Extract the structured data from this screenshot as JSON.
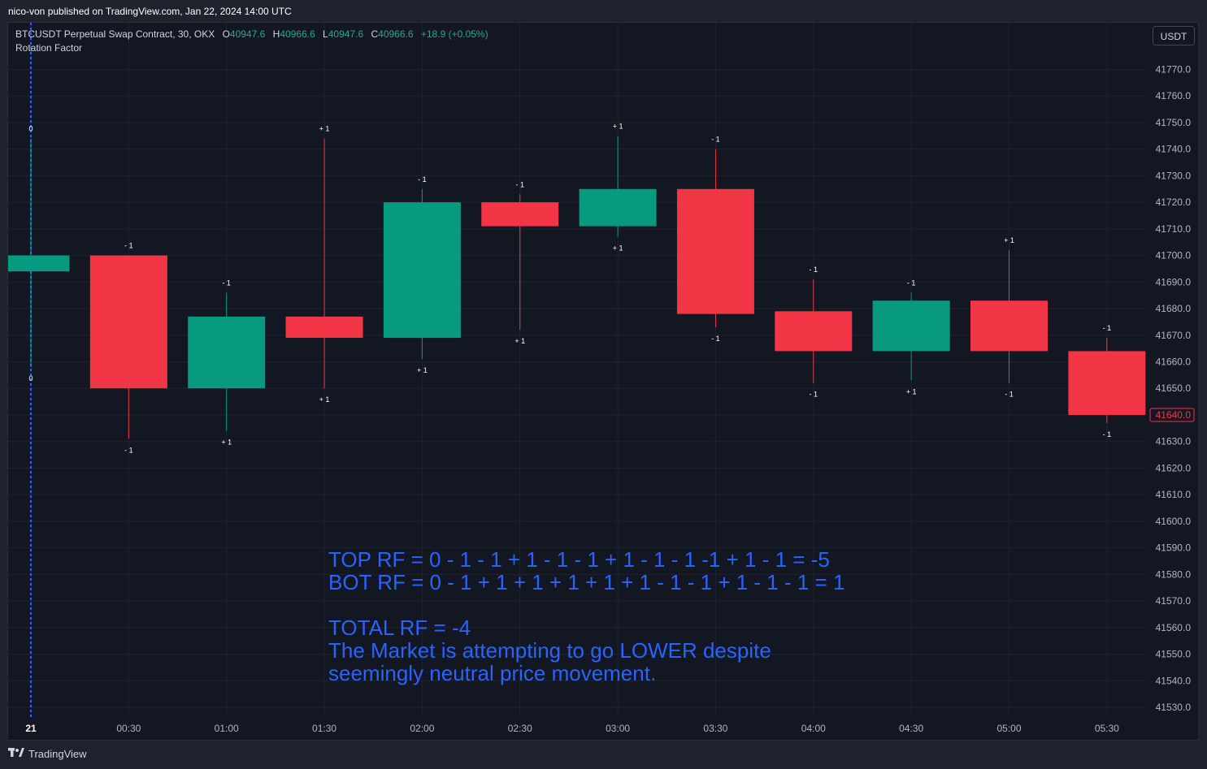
{
  "header": {
    "published": "nico-von published on TradingView.com, Jan 22, 2024 14:00 UTC"
  },
  "legend": {
    "symbol": "BTCUSDT Perpetual Swap Contract, 30, OKX",
    "o_label": "O",
    "o": "40947.6",
    "h_label": "H",
    "h": "40966.6",
    "l_label": "L",
    "l": "40947.6",
    "c_label": "C",
    "c": "40966.6",
    "change": "+18.9 (+0.05%)",
    "indicator": "Rotation Factor"
  },
  "currency_button": "USDT",
  "footer": {
    "brand": "TradingView",
    "logo_icon": "tradingview-logo-icon"
  },
  "colors": {
    "up": "#089981",
    "down": "#f23645",
    "annotation": "#2962ff",
    "background": "#131722",
    "grid": "#1f2330",
    "axis_text": "#b2b5be"
  },
  "chart_data": {
    "type": "candlestick",
    "ylim": [
      41523,
      41781
    ],
    "y_ticks": [
      41530.0,
      41540.0,
      41550.0,
      41560.0,
      41570.0,
      41580.0,
      41590.0,
      41600.0,
      41610.0,
      41620.0,
      41630.0,
      41640.0,
      41650.0,
      41660.0,
      41670.0,
      41680.0,
      41690.0,
      41700.0,
      41710.0,
      41720.0,
      41730.0,
      41740.0,
      41750.0,
      41760.0,
      41770.0
    ],
    "x_ticks": [
      "21",
      "00:30",
      "01:00",
      "01:30",
      "02:00",
      "02:30",
      "03:00",
      "03:30",
      "04:00",
      "04:30",
      "05:00",
      "05:30"
    ],
    "last_price_label": "41640.0",
    "candles": [
      {
        "time": "00:00",
        "open": 41694,
        "high": 41744,
        "low": 41658,
        "close": 41700,
        "top_label": "0",
        "bot_label": "0"
      },
      {
        "time": "00:30",
        "open": 41700,
        "high": 41700,
        "low": 41631,
        "close": 41650,
        "top_label": "- 1",
        "bot_label": "- 1"
      },
      {
        "time": "01:00",
        "open": 41650,
        "high": 41686,
        "low": 41634,
        "close": 41677,
        "top_label": "- 1",
        "bot_label": "+ 1"
      },
      {
        "time": "01:30",
        "open": 41677,
        "high": 41744,
        "low": 41650,
        "close": 41669,
        "top_label": "+ 1",
        "bot_label": "+ 1"
      },
      {
        "time": "02:00",
        "open": 41669,
        "high": 41725,
        "low": 41661,
        "close": 41720,
        "top_label": "- 1",
        "bot_label": "+ 1"
      },
      {
        "time": "02:30",
        "open": 41720,
        "high": 41723,
        "low": 41672,
        "close": 41711,
        "top_label": "- 1",
        "bot_label": "+ 1"
      },
      {
        "time": "03:00",
        "open": 41711,
        "high": 41745,
        "low": 41707,
        "close": 41725,
        "top_label": "+ 1",
        "bot_label": "+ 1"
      },
      {
        "time": "03:30",
        "open": 41725,
        "high": 41740,
        "low": 41673,
        "close": 41678,
        "top_label": "- 1",
        "bot_label": "- 1"
      },
      {
        "time": "04:00",
        "open": 41679,
        "high": 41691,
        "low": 41652,
        "close": 41664,
        "top_label": "- 1",
        "bot_label": "- 1"
      },
      {
        "time": "04:30",
        "open": 41664,
        "high": 41686,
        "low": 41653,
        "close": 41683,
        "top_label": "- 1",
        "bot_label": "+ 1"
      },
      {
        "time": "05:00",
        "open": 41683,
        "high": 41702,
        "low": 41652,
        "close": 41664,
        "top_label": "+ 1",
        "bot_label": "- 1"
      },
      {
        "time": "05:30",
        "open": 41664,
        "high": 41669,
        "low": 41637,
        "close": 41640,
        "top_label": "- 1",
        "bot_label": "- 1"
      }
    ],
    "annotation_lines": [
      "TOP RF = 0 - 1 - 1 + 1 - 1 - 1 + 1 - 1 - 1 -1 + 1 - 1 =  -5",
      "BOT RF = 0 - 1 + 1 + 1 + 1 + 1 + 1 - 1 - 1 + 1 - 1  - 1 =  1",
      "",
      "TOTAL RF = -4",
      "The Market is attempting to go LOWER despite",
      "seemingly neutral price movement."
    ]
  }
}
